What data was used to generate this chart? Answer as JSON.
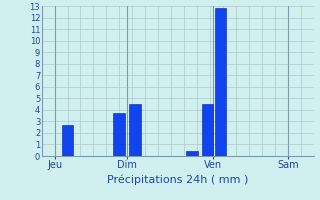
{
  "title": "Précipitations 24h ( mm )",
  "bar_color": "#1144ee",
  "bar_edge_color": "#0022aa",
  "background_color": "#d0f0f0",
  "grid_color": "#b0c8c8",
  "vline_color": "#7a9aaa",
  "axis_color": "#3344aa",
  "text_color": "#2244aa",
  "ylim": [
    0,
    13
  ],
  "yticks": [
    0,
    1,
    2,
    3,
    4,
    5,
    6,
    7,
    8,
    9,
    10,
    11,
    12,
    13
  ],
  "x_positions": [
    1.0,
    3.0,
    3.6,
    5.8,
    6.4,
    6.9
  ],
  "bar_heights": [
    2.7,
    3.7,
    4.5,
    0.4,
    4.5,
    12.8
  ],
  "bar_width": 0.45,
  "xtick_positions": [
    0.5,
    3.3,
    6.6,
    9.5
  ],
  "xtick_labels": [
    "Jeu",
    "Dim",
    "Ven",
    "Sam"
  ],
  "vline_positions": [
    0.5,
    3.3,
    6.6,
    9.5
  ],
  "xlim": [
    0,
    10.5
  ],
  "xlabel_fontsize": 8,
  "ytick_fontsize": 6,
  "xtick_fontsize": 7
}
